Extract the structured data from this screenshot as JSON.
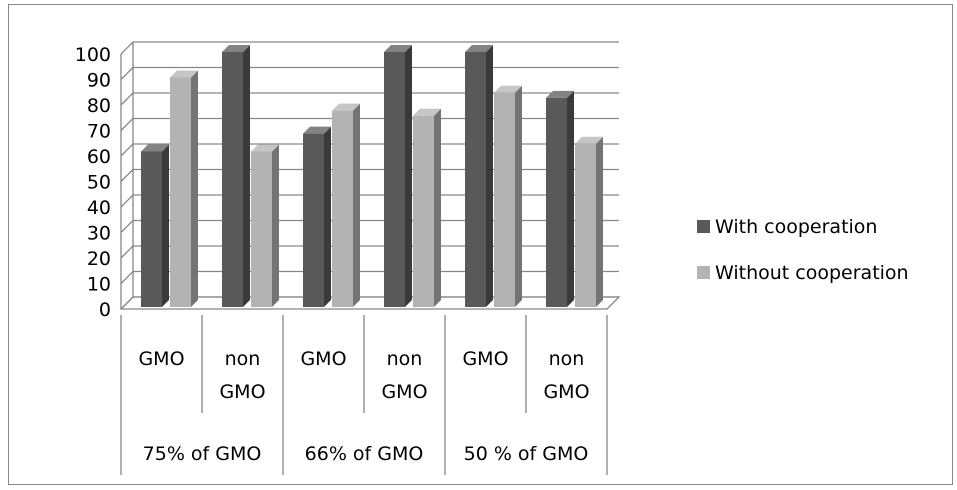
{
  "chart_data": {
    "type": "bar",
    "variant": "3d-clustered-column",
    "categories": [
      {
        "sub": [
          "GMO"
        ],
        "group": "75% of GMO"
      },
      {
        "sub": [
          "non",
          "GMO"
        ],
        "group": "75% of GMO"
      },
      {
        "sub": [
          "GMO"
        ],
        "group": "66% of GMO"
      },
      {
        "sub": [
          "non",
          "GMO"
        ],
        "group": "66% of GMO"
      },
      {
        "sub": [
          "GMO"
        ],
        "group": "50 % of GMO"
      },
      {
        "sub": [
          "non",
          "GMO"
        ],
        "group": "50 % of GMO"
      }
    ],
    "groups": [
      "75% of GMO",
      "66% of GMO",
      "50 % of GMO"
    ],
    "series": [
      {
        "name": "With cooperation",
        "values": [
          61,
          100,
          68,
          100,
          100,
          82
        ],
        "color": "#595959"
      },
      {
        "name": "Without cooperation",
        "values": [
          90,
          61,
          77,
          75,
          84,
          64
        ],
        "color": "#b3b3b3"
      }
    ],
    "yticks": [
      "0",
      "10",
      "20",
      "30",
      "40",
      "50",
      "60",
      "70",
      "80",
      "90",
      "100"
    ],
    "ylim": [
      0,
      100
    ],
    "grid": true,
    "legend_position": "right",
    "title": "",
    "xlabel": "",
    "ylabel": ""
  }
}
